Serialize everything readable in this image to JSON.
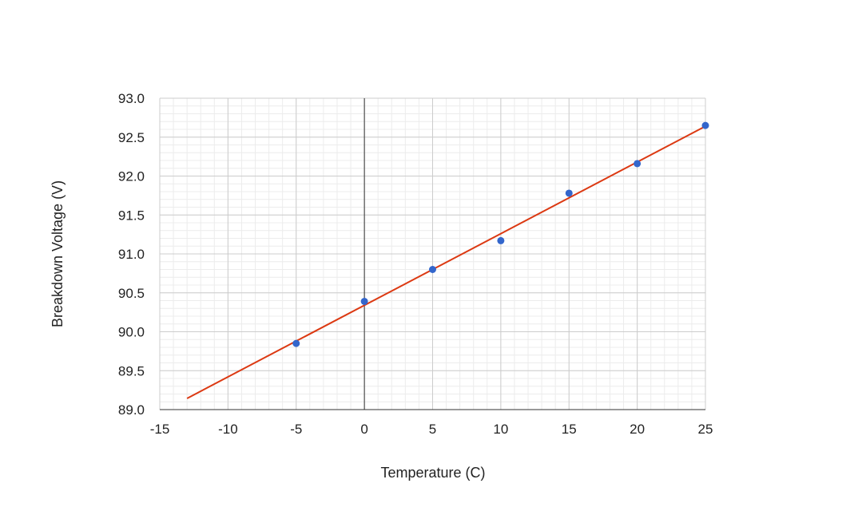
{
  "chart_data": {
    "type": "scatter",
    "title": "",
    "xlabel": "Temperature (C)",
    "ylabel": "Breakdown Voltage (V)",
    "xlim": [
      -15,
      25
    ],
    "ylim": [
      89.0,
      93.0
    ],
    "x_ticks": [
      "-15",
      "-10",
      "-5",
      "0",
      "5",
      "10",
      "15",
      "20",
      "25"
    ],
    "y_ticks": [
      "89.0",
      "89.5",
      "90.0",
      "90.5",
      "91.0",
      "91.5",
      "92.0",
      "92.5",
      "93.0"
    ],
    "grid": true,
    "minor_grid": true,
    "series": [
      {
        "type": "scatter",
        "color": "#3366cc",
        "points": [
          {
            "x": -5,
            "y": 89.85
          },
          {
            "x": 0,
            "y": 90.39
          },
          {
            "x": 5,
            "y": 90.8
          },
          {
            "x": 10,
            "y": 91.17
          },
          {
            "x": 15,
            "y": 91.78
          },
          {
            "x": 20,
            "y": 92.16
          },
          {
            "x": 25,
            "y": 92.65
          }
        ]
      },
      {
        "type": "trendline",
        "color": "#dc3912",
        "x_range": [
          -13,
          25
        ],
        "intercept": 90.34,
        "slope": 0.092
      }
    ]
  }
}
